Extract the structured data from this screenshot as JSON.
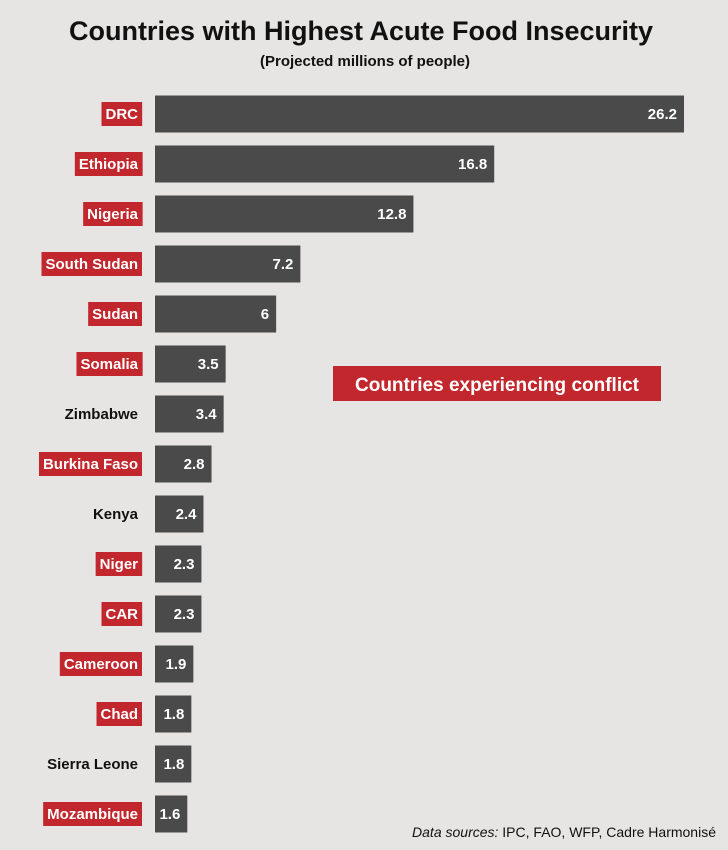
{
  "colors": {
    "background": "#e6e5e4",
    "bar": "#4a4a4a",
    "conflict_highlight": "#c1272d",
    "text": "#111111",
    "value_text": "#ffffff"
  },
  "legend": {
    "label": "Countries experiencing conflict",
    "color": "#c1272d"
  },
  "source": {
    "prefix": "Data sources:",
    "text": " IPC, FAO, WFP, Cadre Harmonisé"
  },
  "chart_data": {
    "type": "bar",
    "orientation": "horizontal",
    "title": "Countries with Highest Acute Food Insecurity",
    "subtitle": "(Projected millions of people)",
    "xlabel": "",
    "ylabel": "",
    "xlim": [
      0,
      26.2
    ],
    "grid": false,
    "legend_position": "center-right",
    "categories": [
      "DRC",
      "Ethiopia",
      "Nigeria",
      "South Sudan",
      "Sudan",
      "Somalia",
      "Zimbabwe",
      "Burkina Faso",
      "Kenya",
      "Niger",
      "CAR",
      "Cameroon",
      "Chad",
      "Sierra Leone",
      "Mozambique"
    ],
    "values": [
      26.2,
      16.8,
      12.8,
      7.2,
      6,
      3.5,
      3.4,
      2.8,
      2.4,
      2.3,
      2.3,
      1.9,
      1.8,
      1.8,
      1.6
    ],
    "conflict": [
      true,
      true,
      true,
      true,
      true,
      true,
      false,
      true,
      false,
      true,
      true,
      true,
      true,
      false,
      true
    ]
  }
}
